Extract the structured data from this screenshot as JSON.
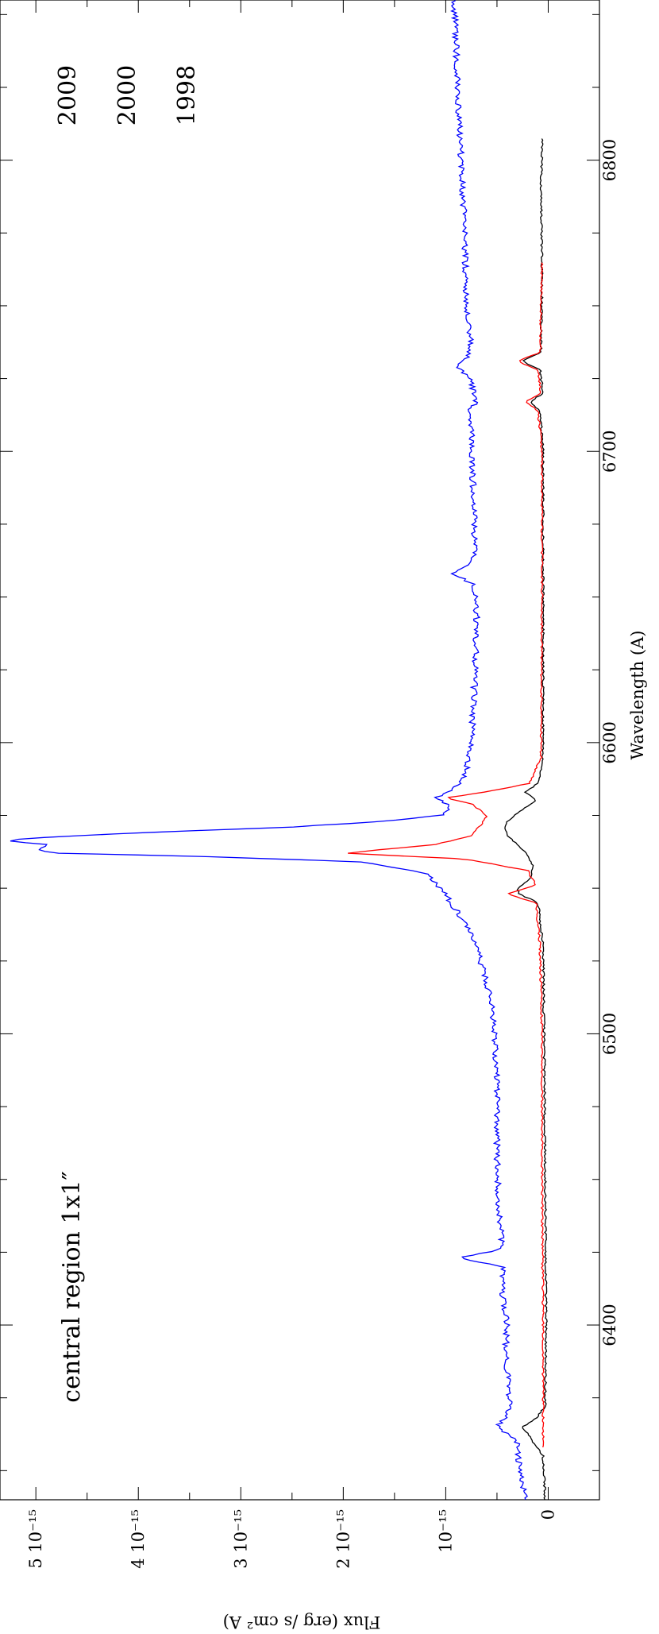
{
  "chart_data": {
    "type": "line",
    "orientation": "rotated-90-clockwise",
    "xlabel": "Wavelength (A)",
    "ylabel": "Flux (erg /s cm² A)",
    "xlim": [
      6340,
      6855
    ],
    "ylim": [
      -5e-16,
      5.35e-15
    ],
    "x_ticks": [
      {
        "value": 6400,
        "label": "6400"
      },
      {
        "value": 6500,
        "label": "6500"
      },
      {
        "value": 6600,
        "label": "6600"
      },
      {
        "value": 6700,
        "label": "6700"
      },
      {
        "value": 6800,
        "label": "6800"
      }
    ],
    "y_ticks": [
      {
        "value": 0,
        "label": "0"
      },
      {
        "value": 1e-15,
        "label": "10⁻¹⁵"
      },
      {
        "value": 2e-15,
        "label": "2 10⁻¹⁵"
      },
      {
        "value": 3e-15,
        "label": "3 10⁻¹⁵"
      },
      {
        "value": 4e-15,
        "label": "4 10⁻¹⁵"
      },
      {
        "value": 5e-15,
        "label": "5 10⁻¹⁵"
      }
    ],
    "annotation": "central region 1x1″",
    "legend_placement": "top-right",
    "series": [
      {
        "name": "2009",
        "color": "#0000ff",
        "points": [
          [
            6340,
            2.2e-16
          ],
          [
            6350,
            2.8e-16
          ],
          [
            6360,
            3e-16
          ],
          [
            6365,
            5e-16
          ],
          [
            6368,
            4.2e-16
          ],
          [
            6372,
            3.8e-16
          ],
          [
            6380,
            3.8e-16
          ],
          [
            6390,
            4.2e-16
          ],
          [
            6400,
            4e-16
          ],
          [
            6410,
            4.5e-16
          ],
          [
            6420,
            4.5e-16
          ],
          [
            6423,
            8.8e-16
          ],
          [
            6426,
            4.5e-16
          ],
          [
            6440,
            4.8e-16
          ],
          [
            6460,
            5e-16
          ],
          [
            6480,
            5e-16
          ],
          [
            6500,
            5.2e-16
          ],
          [
            6510,
            5.5e-16
          ],
          [
            6520,
            6.2e-16
          ],
          [
            6530,
            7e-16
          ],
          [
            6540,
            8.5e-16
          ],
          [
            6545,
            9.5e-16
          ],
          [
            6550,
            1.05e-15
          ],
          [
            6555,
            1.2e-15
          ],
          [
            6559,
            1.8e-15
          ],
          [
            6561,
            3.5e-15
          ],
          [
            6562,
            4.8e-15
          ],
          [
            6563,
            5e-15
          ],
          [
            6565,
            4.9e-15
          ],
          [
            6566,
            5.25e-15
          ],
          [
            6567,
            5.15e-15
          ],
          [
            6569,
            4e-15
          ],
          [
            6571,
            2.5e-15
          ],
          [
            6573,
            1.6e-15
          ],
          [
            6575,
            1.05e-15
          ],
          [
            6578,
            9.5e-16
          ],
          [
            6581,
            1.1e-15
          ],
          [
            6585,
            9e-16
          ],
          [
            6590,
            8e-16
          ],
          [
            6600,
            7.5e-16
          ],
          [
            6620,
            7.2e-16
          ],
          [
            6640,
            7e-16
          ],
          [
            6650,
            7e-16
          ],
          [
            6655,
            7.5e-16
          ],
          [
            6658,
            9.5e-16
          ],
          [
            6661,
            8e-16
          ],
          [
            6665,
            7.2e-16
          ],
          [
            6680,
            7.2e-16
          ],
          [
            6700,
            7.5e-16
          ],
          [
            6710,
            7.5e-16
          ],
          [
            6714,
            8e-16
          ],
          [
            6717,
            7e-16
          ],
          [
            6720,
            7.2e-16
          ],
          [
            6726,
            7.8e-16
          ],
          [
            6729,
            9e-16
          ],
          [
            6731,
            8.2e-16
          ],
          [
            6735,
            7.5e-16
          ],
          [
            6750,
            8e-16
          ],
          [
            6780,
            8.2e-16
          ],
          [
            6800,
            8.5e-16
          ],
          [
            6820,
            8.8e-16
          ],
          [
            6840,
            9e-16
          ],
          [
            6855,
            9.2e-16
          ]
        ]
      },
      {
        "name": "2000",
        "color": "#000000",
        "points": [
          [
            6340,
            3e-17
          ],
          [
            6355,
            5e-17
          ],
          [
            6365,
            2.5e-16
          ],
          [
            6368,
            1.2e-16
          ],
          [
            6372,
            3e-17
          ],
          [
            6400,
            2e-17
          ],
          [
            6450,
            3e-17
          ],
          [
            6500,
            4e-17
          ],
          [
            6530,
            5e-17
          ],
          [
            6545,
            1e-16
          ],
          [
            6548,
            2.8e-16
          ],
          [
            6550,
            3e-16
          ],
          [
            6553,
            1.8e-16
          ],
          [
            6558,
            1.5e-16
          ],
          [
            6562,
            2.2e-16
          ],
          [
            6565,
            3e-16
          ],
          [
            6568,
            4e-16
          ],
          [
            6572,
            4.2e-16
          ],
          [
            6576,
            3e-16
          ],
          [
            6580,
            1.2e-16
          ],
          [
            6583,
            2.2e-16
          ],
          [
            6586,
            1e-16
          ],
          [
            6595,
            5e-17
          ],
          [
            6650,
            5e-17
          ],
          [
            6700,
            5e-17
          ],
          [
            6714,
            8e-17
          ],
          [
            6717,
            1.8e-16
          ],
          [
            6720,
            5e-17
          ],
          [
            6728,
            8e-17
          ],
          [
            6731,
            2.5e-16
          ],
          [
            6734,
            7e-17
          ],
          [
            6760,
            6e-17
          ],
          [
            6790,
            7e-17
          ],
          [
            6808,
            6e-17
          ]
        ]
      },
      {
        "name": "1998",
        "color": "#ff0000",
        "points": [
          [
            6358,
            5e-17
          ],
          [
            6400,
            5e-17
          ],
          [
            6450,
            6e-17
          ],
          [
            6500,
            6e-17
          ],
          [
            6530,
            8e-17
          ],
          [
            6545,
            1.2e-16
          ],
          [
            6548,
            4e-16
          ],
          [
            6551,
            1.2e-16
          ],
          [
            6556,
            2e-16
          ],
          [
            6560,
            8e-16
          ],
          [
            6561,
            1.4e-15
          ],
          [
            6562,
            1.95e-15
          ],
          [
            6563,
            1.7e-15
          ],
          [
            6565,
            1.1e-15
          ],
          [
            6568,
            7.5e-16
          ],
          [
            6572,
            6.5e-16
          ],
          [
            6575,
            6e-16
          ],
          [
            6579,
            7.5e-16
          ],
          [
            6581,
            1e-15
          ],
          [
            6583,
            6.2e-16
          ],
          [
            6586,
            1.8e-16
          ],
          [
            6595,
            7e-17
          ],
          [
            6650,
            6e-17
          ],
          [
            6700,
            6e-17
          ],
          [
            6714,
            1e-16
          ],
          [
            6717,
            2.2e-16
          ],
          [
            6720,
            7e-17
          ],
          [
            6728,
            1e-16
          ],
          [
            6731,
            3e-16
          ],
          [
            6734,
            8e-17
          ],
          [
            6750,
            7e-17
          ],
          [
            6765,
            6e-17
          ]
        ]
      }
    ]
  }
}
